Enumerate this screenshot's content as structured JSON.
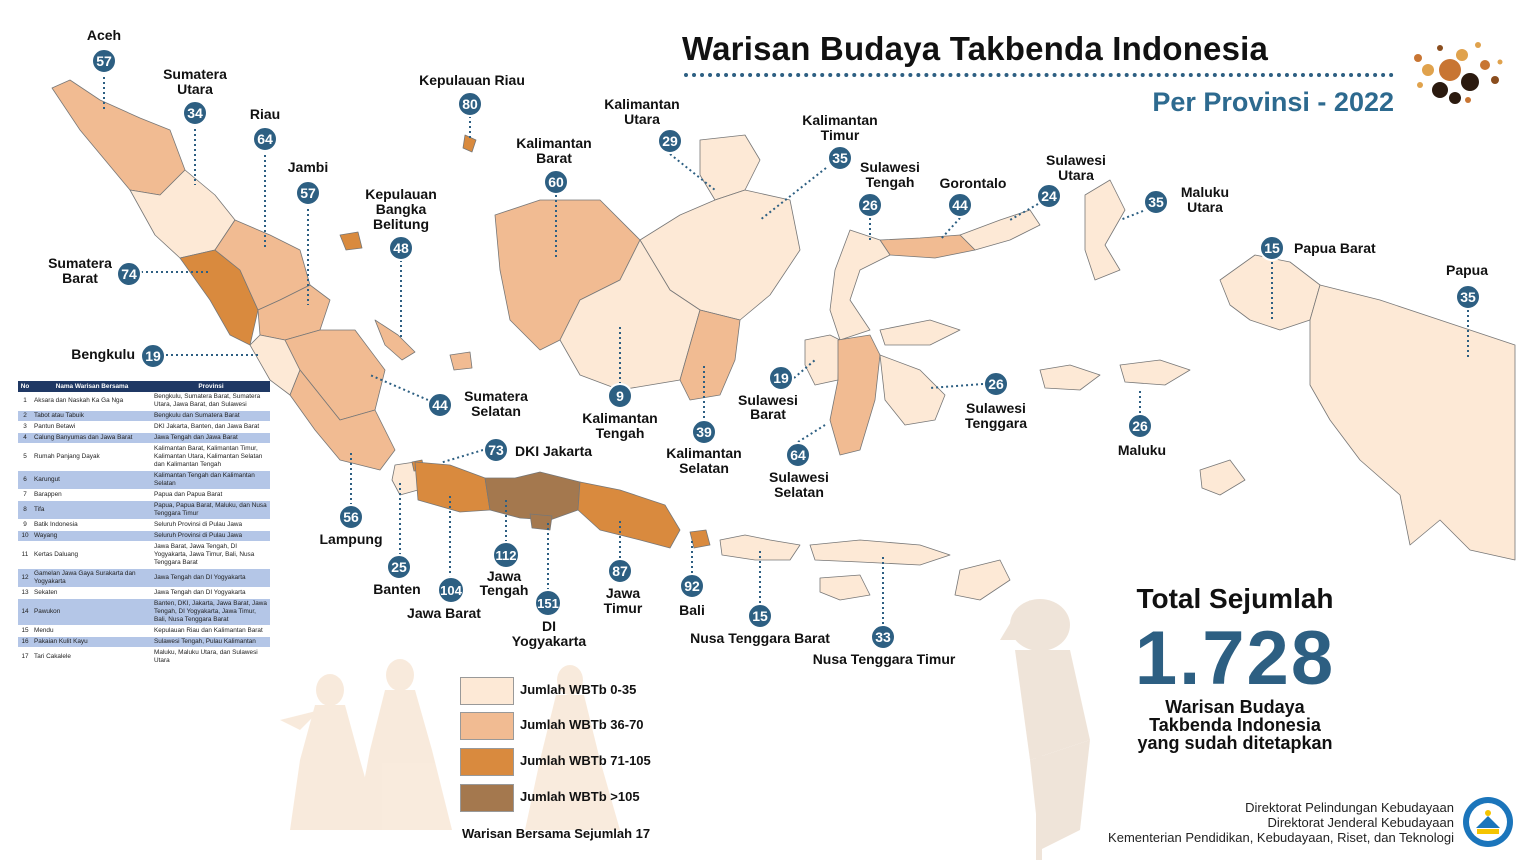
{
  "header": {
    "title": "Warisan Budaya Takbenda Indonesia",
    "subtitle": "Per Provinsi - 2022"
  },
  "provinces": [
    {
      "name": "Aceh",
      "count": 57
    },
    {
      "name": "Sumatera Utara",
      "count": 34
    },
    {
      "name": "Riau",
      "count": 64
    },
    {
      "name": "Jambi",
      "count": 57
    },
    {
      "name": "Kepulauan Riau",
      "count": 80
    },
    {
      "name": "Kepulauan Bangka Belitung",
      "count": 48
    },
    {
      "name": "Sumatera Barat",
      "count": 74
    },
    {
      "name": "Bengkulu",
      "count": 19
    },
    {
      "name": "Sumatera Selatan",
      "count": 44
    },
    {
      "name": "Lampung",
      "count": 56
    },
    {
      "name": "Banten",
      "count": 25
    },
    {
      "name": "DKI Jakarta",
      "count": 73
    },
    {
      "name": "Jawa Barat",
      "count": 104
    },
    {
      "name": "Jawa Tengah",
      "count": 112
    },
    {
      "name": "DI Yogyakarta",
      "count": 151
    },
    {
      "name": "Jawa Timur",
      "count": 87
    },
    {
      "name": "Bali",
      "count": 92
    },
    {
      "name": "Nusa Tenggara Barat",
      "count": 15
    },
    {
      "name": "Nusa Tenggara Timur",
      "count": 33
    },
    {
      "name": "Kalimantan Barat",
      "count": 60
    },
    {
      "name": "Kalimantan Utara",
      "count": 29
    },
    {
      "name": "Kalimantan Timur",
      "count": 35
    },
    {
      "name": "Kalimantan Tengah",
      "count": 9
    },
    {
      "name": "Kalimantan Selatan",
      "count": 39
    },
    {
      "name": "Sulawesi Barat",
      "count": 19
    },
    {
      "name": "Sulawesi Tengah",
      "count": 26
    },
    {
      "name": "Gorontalo",
      "count": 44
    },
    {
      "name": "Sulawesi Utara",
      "count": 24
    },
    {
      "name": "Sulawesi Tenggara",
      "count": 26
    },
    {
      "name": "Sulawesi Selatan",
      "count": 64
    },
    {
      "name": "Maluku Utara",
      "count": 35
    },
    {
      "name": "Maluku",
      "count": 26
    },
    {
      "name": "Papua Barat",
      "count": 15
    },
    {
      "name": "Papua",
      "count": 35
    }
  ],
  "legend": {
    "items": [
      {
        "label": "Jumlah WBTb  0-35",
        "color": "#fde9d6"
      },
      {
        "label": "Jumlah WBTb 36-70",
        "color": "#f1bb92"
      },
      {
        "label": "Jumlah WBTb 71-105",
        "color": "#d98a3e"
      },
      {
        "label": "Jumlah WBTb >105",
        "color": "#a4784e"
      }
    ],
    "footer": "Warisan Bersama Sejumlah 17"
  },
  "shared_table": {
    "headers": [
      "No",
      "Nama Warisan Bersama",
      "Provinsi"
    ],
    "rows": [
      [
        "1",
        "Aksara dan Naskah Ka Ga Nga",
        "Bengkulu, Sumatera Barat, Sumatera Utara, Jawa Barat, dan Sulawesi"
      ],
      [
        "2",
        "Tabot atau Tabuik",
        "Bengkulu dan Sumatera Barat"
      ],
      [
        "3",
        "Pantun Betawi",
        "DKI Jakarta, Banten, dan Jawa Barat"
      ],
      [
        "4",
        "Calung Banyumas dan Jawa Barat",
        "Jawa Tengah dan Jawa Barat"
      ],
      [
        "5",
        "Rumah Panjang Dayak",
        "Kalimantan Barat, Kalimantan Timur, Kalimantan Utara, Kalimantan Selatan dan Kalimantan Tengah"
      ],
      [
        "6",
        "Karungut",
        "Kalimantan Tengah dan Kalimantan Selatan"
      ],
      [
        "7",
        "Barappen",
        "Papua dan Papua Barat"
      ],
      [
        "8",
        "Tifa",
        "Papua, Papua Barat, Maluku, dan Nusa Tenggara Timur"
      ],
      [
        "9",
        "Batik Indonesia",
        "Seluruh Provinsi di Pulau Jawa"
      ],
      [
        "10",
        "Wayang",
        "Seluruh Provinsi di Pulau Jawa"
      ],
      [
        "11",
        "Kertas Daluang",
        "Jawa Barat, Jawa Tengah, DI Yogyakarta, Jawa Timur, Bali, Nusa Tenggara Barat"
      ],
      [
        "12",
        "Gamelan Jawa Gaya Surakarta dan Yogyakarta",
        "Jawa Tengah dan DI Yogyakarta"
      ],
      [
        "13",
        "Sekaten",
        "Jawa Tengah dan DI Yogyakarta"
      ],
      [
        "14",
        "Pawukon",
        "Banten, DKI, Jakarta, Jawa Barat, Jawa Tengah, DI Yogyakarta, Jawa Timur, Bali, Nusa Tenggara Barat"
      ],
      [
        "15",
        "Mendu",
        "Kepulauan Riau dan Kalimantan Barat"
      ],
      [
        "16",
        "Pakaian Kulit Kayu",
        "Sulawesi Tengah, Pulau Kalimantan"
      ],
      [
        "17",
        "Tari Cakalele",
        "Maluku, Maluku Utara, dan Sulawesi Utara"
      ]
    ]
  },
  "total": {
    "label": "Total Sejumlah",
    "number": "1.728",
    "description_lines": [
      "Warisan Budaya",
      "Takbenda Indonesia",
      "yang sudah ditetapkan"
    ]
  },
  "credits": {
    "lines": [
      "Direktorat Pelindungan Kebudayaan",
      "Direktorat Jenderal Kebudayaan",
      "Kementerian Pendidikan, Kebudayaan, Riset, dan Teknologi"
    ]
  },
  "colors": {
    "badge": "#2d5f82",
    "tier1": "#fde9d6",
    "tier2": "#f1bb92",
    "tier3": "#d98a3e",
    "tier4": "#a4784e",
    "outline": "#777777"
  }
}
